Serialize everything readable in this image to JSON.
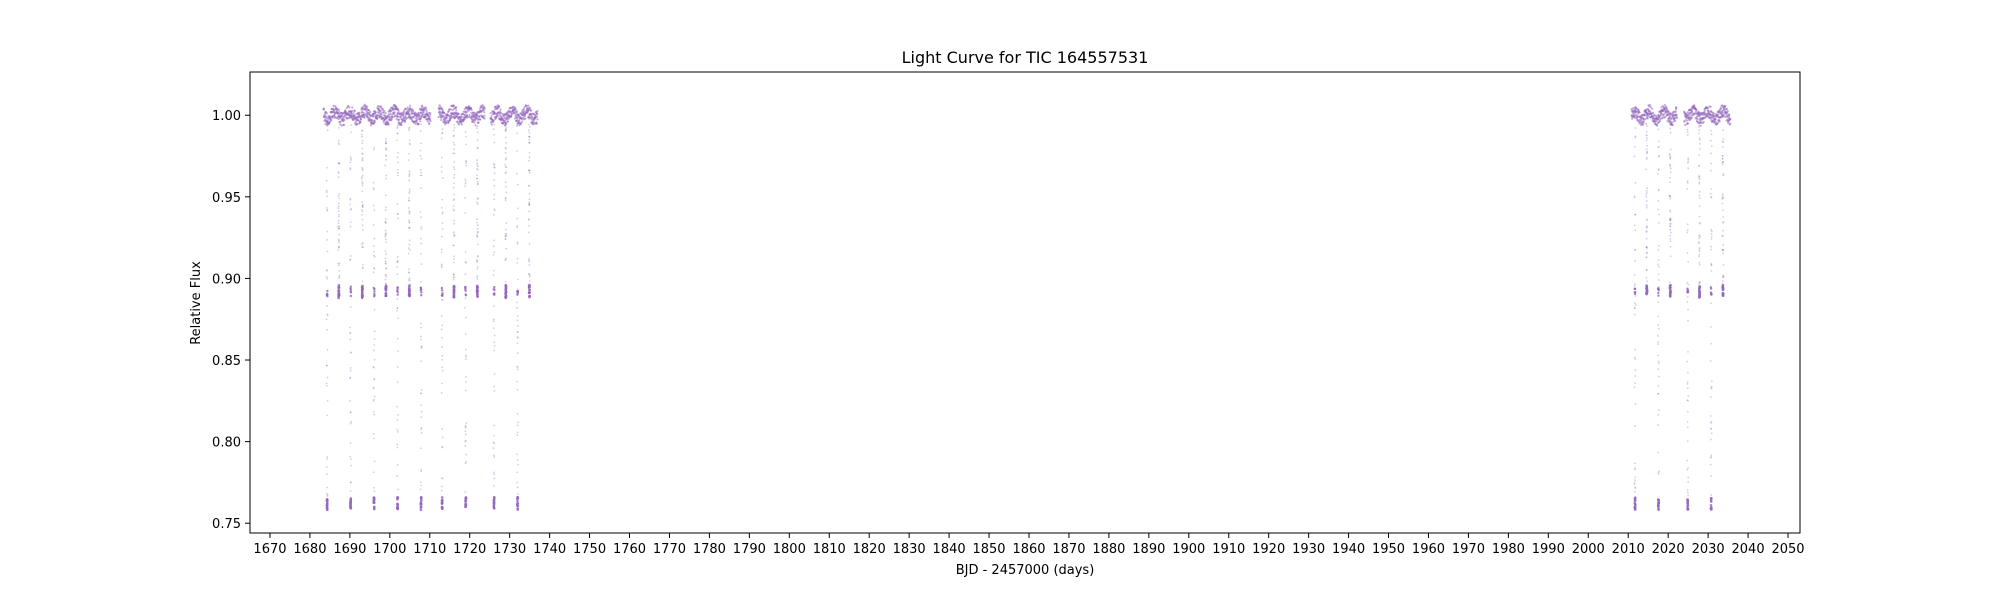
{
  "chart_data": {
    "type": "scatter",
    "title": "Light Curve for TIC 164557531",
    "xlabel": "BJD - 2457000 (days)",
    "ylabel": "Relative Flux",
    "xlim": [
      1665,
      2053
    ],
    "ylim": [
      0.744,
      1.0265
    ],
    "x_ticks": [
      1670,
      1680,
      1690,
      1700,
      1710,
      1720,
      1730,
      1740,
      1750,
      1760,
      1770,
      1780,
      1790,
      1800,
      1810,
      1820,
      1830,
      1840,
      1850,
      1860,
      1870,
      1880,
      1890,
      1900,
      1910,
      1920,
      1930,
      1940,
      1950,
      1960,
      1970,
      1980,
      1990,
      2000,
      2010,
      2020,
      2030,
      2040,
      2050
    ],
    "y_ticks": [
      0.75,
      0.8,
      0.85,
      0.9,
      0.95,
      1.0
    ],
    "y_tick_labels": [
      "0.75",
      "0.80",
      "0.85",
      "0.90",
      "0.95",
      "1.00"
    ],
    "grid": false,
    "series": [
      {
        "color": "#9467bd",
        "segments": [
          {
            "x_range": [
              1683.4,
              1710.2
            ]
          },
          {
            "x_range": [
              1712.2,
              1723.8
            ]
          },
          {
            "x_range": [
              1725.2,
              1737.0
            ]
          },
          {
            "x_range": [
              2010.8,
              2022.2
            ]
          },
          {
            "x_range": [
              2024.0,
              2035.6
            ]
          }
        ],
        "baseline_flux": 1.0,
        "baseline_scatter": 0.004,
        "shallow_eclipse_depth_flux": 0.892,
        "deep_eclipse_depth_flux": 0.762,
        "eclipse_period_days": 2.94
      }
    ]
  }
}
